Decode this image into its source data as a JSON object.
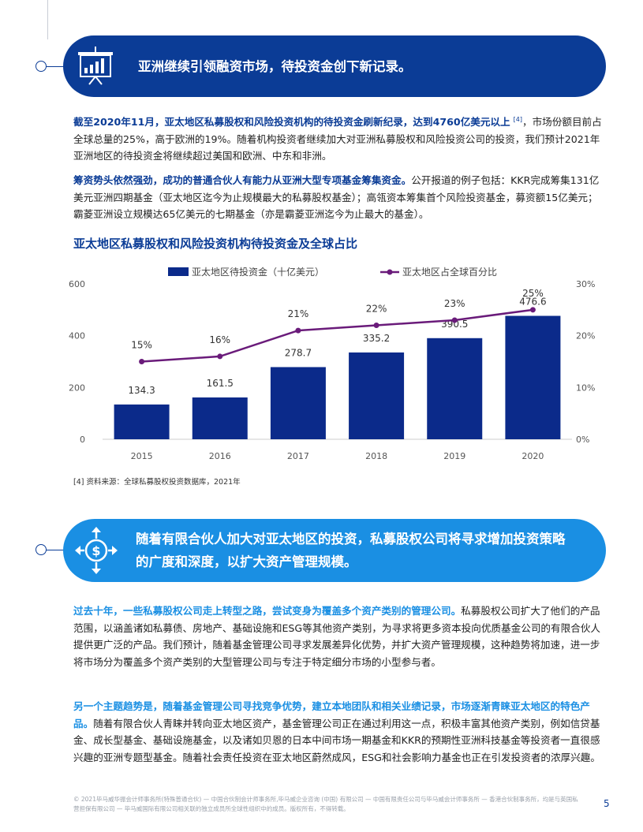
{
  "section1": {
    "title": "亚洲继续引领融资市场，待投资金创下新记录。",
    "p1_lead": "截至2020年11月，亚太地区私募股权和风险投资机构的待投资金刷新纪录，达到4760亿美元以上",
    "p1_ref": "[4]",
    "p1_rest": "，市场份额目前占全球总量的25%，高于欧洲的19%。随着机构投资者继续加大对亚洲私募股权和风险投资公司的投资，我们预计2021年亚洲地区的待投资金将继续超过美国和欧洲、中东和非洲。",
    "p2_lead": "筹资势头依然强劲，成功的普通合伙人有能力从亚洲大型专项基金筹集资金。",
    "p2_rest": "公开报道的例子包括：KKR完成筹集131亿美元亚洲四期基金（亚太地区迄今为止规模最大的私募股权基金）；高瓴资本筹集首个风险投资基金，募资额15亿美元；霸菱亚洲设立规模达65亿美元的七期基金（亦是霸菱亚洲迄今为止最大的基金）。"
  },
  "chart_data": {
    "type": "bar",
    "title": "亚太地区私募股权和风险投资机构待投资金及全球占比",
    "categories": [
      "2015",
      "2016",
      "2017",
      "2018",
      "2019",
      "2020"
    ],
    "series": [
      {
        "name": "亚太地区待投资金（十亿美元）",
        "type": "bar",
        "axis": "left",
        "values": [
          134.3,
          161.5,
          278.7,
          335.2,
          390.5,
          476.6
        ],
        "labels": [
          "134.3",
          "161.5",
          "278.7",
          "335.2",
          "390.5",
          "476.6"
        ],
        "color": "#0b2a8a"
      },
      {
        "name": "亚太地区占全球百分比",
        "type": "line",
        "axis": "right",
        "values": [
          15,
          16,
          21,
          22,
          23,
          25
        ],
        "labels": [
          "15%",
          "16%",
          "21%",
          "22%",
          "23%",
          "25%"
        ],
        "color": "#6a1b7a"
      }
    ],
    "y_left": {
      "ylim": [
        0,
        600
      ],
      "ticks": [
        "0",
        "200",
        "400",
        "600"
      ]
    },
    "y_right": {
      "ylim": [
        0,
        30
      ],
      "ticks": [
        "0%",
        "10%",
        "20%",
        "30%"
      ]
    },
    "grid": false,
    "legend_position": "top"
  },
  "footnote": "[4] 资料来源：全球私募股权投资数据库，2021年",
  "section2": {
    "title": "随着有限合伙人加大对亚太地区的投资，私募股权公司将寻求增加投资策略的广度和深度，以扩大资产管理规模。",
    "p3_lead": "过去十年，一些私募股权公司走上转型之路，尝试变身为覆盖多个资产类别的管理公司。",
    "p3_rest": "私募股权公司扩大了他们的产品范围，以涵盖诸如私募债、房地产、基础设施和ESG等其他资产类别，为寻求将更多资本投向优质基金公司的有限合伙人提供更广泛的产品。我们预计，随着基金管理公司寻求发展差异化优势，并扩大资产管理规模，这种趋势将加速，进一步将市场分为覆盖多个资产类别的大型管理公司与专注于特定细分市场的小型参与者。",
    "p4_lead": "另一个主题趋势是，随着基金管理公司寻找竞争优势，建立本地团队和相关业绩记录，市场逐渐青睐亚太地区的特色产品。",
    "p4_rest": "随着有限合伙人青睐并转向亚太地区资产，基金管理公司正在通过利用这一点，积极丰富其他资产类别，例如信贷基金、成长型基金、基础设施基金，以及诸如贝恩的日本中间市场一期基金和KKR的预期性亚洲科技基金等投资者一直很感兴趣的亚洲专题型基金。随着社会责任投资在亚太地区蔚然成风，ESG和社会影响力基金也正在引发投资者的浓厚兴趣。"
  },
  "footer": {
    "text": "© 2021毕马威华振会计师事务所(特殊普通合伙) — 中国合伙制会计师事务所,毕马威企业咨询 (中国) 有限公司 — 中国有限责任公司与毕马威会计师事务所 — 香港合伙制事务所，均是与英国私营担保有限公司 — 毕马威国际有限公司相关联的独立成员所全球性组织中的成员。版权所有，不得转载。",
    "page": "5"
  },
  "icons": {
    "banner1": "presentation-chart-icon",
    "banner2": "dollar-arrows-icon"
  },
  "colors": {
    "dark_blue": "#0b3c96",
    "light_blue": "#1a8fe3",
    "bar": "#0b2a8a",
    "line": "#6a1b7a"
  }
}
